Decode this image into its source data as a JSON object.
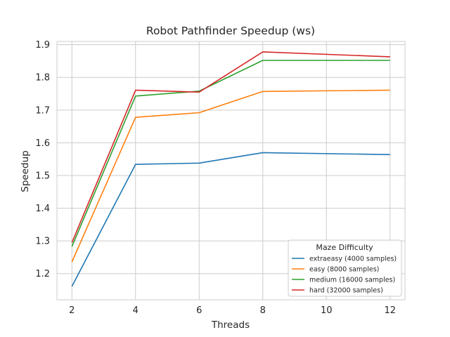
{
  "chart_data": {
    "type": "line",
    "title": "Robot Pathfinder Speedup (ws)",
    "xlabel": "Threads",
    "ylabel": "Speedup",
    "xlim": [
      1.53,
      12.47
    ],
    "ylim": [
      1.12,
      1.91
    ],
    "xticks": [
      "2",
      "4",
      "6",
      "8",
      "10",
      "12"
    ],
    "xtick_values": [
      2,
      4,
      6,
      8,
      10,
      12
    ],
    "yticks": [
      "1.2",
      "1.3",
      "1.4",
      "1.5",
      "1.6",
      "1.7",
      "1.8",
      "1.9"
    ],
    "ytick_values": [
      1.2,
      1.3,
      1.4,
      1.5,
      1.6,
      1.7,
      1.8,
      1.9
    ],
    "grid": true,
    "legend": {
      "title": "Maze Difficulty",
      "placement": "lower-right"
    },
    "x": [
      2,
      4,
      6,
      8,
      12
    ],
    "series": [
      {
        "name": "extraeasy (4000 samples)",
        "color": "#1f77b4",
        "values": [
          1.161,
          1.534,
          1.538,
          1.57,
          1.564
        ]
      },
      {
        "name": "easy (8000 samples)",
        "color": "#ff7f0e",
        "values": [
          1.236,
          1.678,
          1.692,
          1.757,
          1.761
        ]
      },
      {
        "name": "medium (16000 samples)",
        "color": "#2ca02c",
        "values": [
          1.283,
          1.743,
          1.758,
          1.852,
          1.852
        ]
      },
      {
        "name": "hard (32000 samples)",
        "color": "#d62728",
        "values": [
          1.295,
          1.761,
          1.755,
          1.878,
          1.863
        ]
      }
    ]
  }
}
